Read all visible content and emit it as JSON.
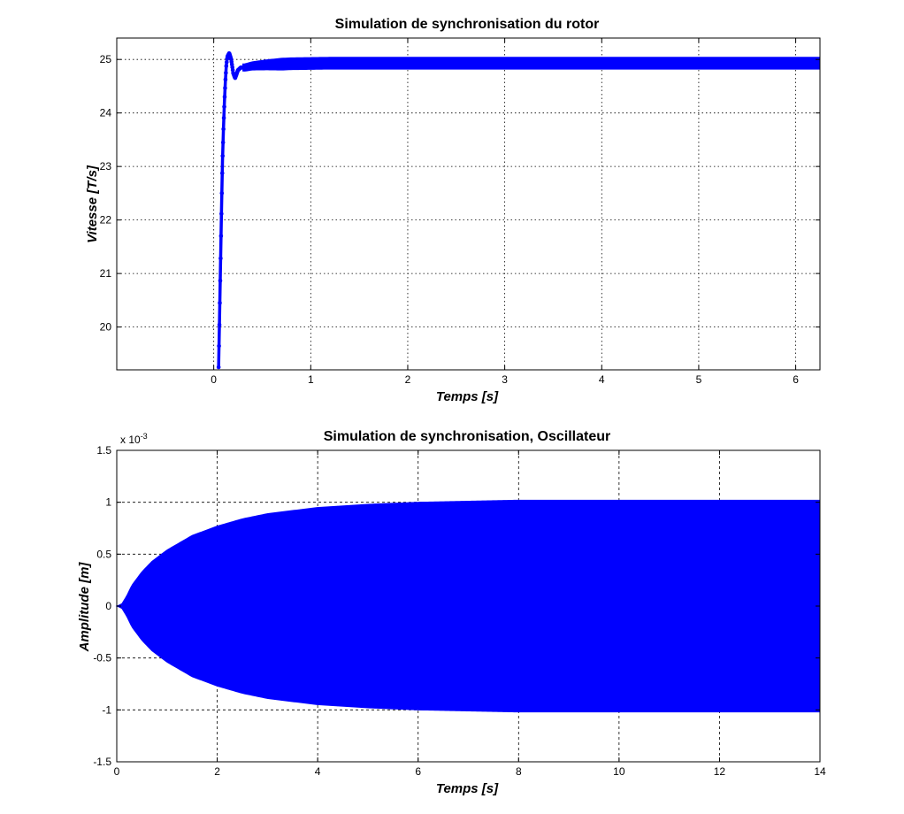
{
  "chart_data": [
    {
      "type": "line",
      "title": "Simulation de synchronisation du rotor",
      "xlabel": "Temps [s]",
      "ylabel": "Vitesse [T/s]",
      "xlim": [
        -1,
        6.25
      ],
      "ylim": [
        19.2,
        25.4
      ],
      "xticks": [
        0,
        1,
        2,
        3,
        4,
        5,
        6
      ],
      "yticks": [
        20,
        21,
        22,
        23,
        24,
        25
      ],
      "grid": "dotted",
      "color": "#0000ff",
      "marker": "dot",
      "series": [
        {
          "x": [
            0.05,
            0.06,
            0.07,
            0.08,
            0.09,
            0.1,
            0.11,
            0.12,
            0.13,
            0.14,
            0.16,
            0.18,
            0.2,
            0.22,
            0.25,
            0.28,
            0.32,
            0.4,
            0.55,
            0.8,
            1.2,
            2.0,
            3.0,
            4.0,
            5.0,
            6.25
          ],
          "y": [
            19.25,
            20.2,
            21.2,
            22.2,
            23.1,
            23.7,
            24.2,
            24.6,
            24.9,
            25.05,
            25.12,
            25.0,
            24.75,
            24.65,
            24.8,
            24.85,
            24.85,
            24.88,
            24.9,
            24.92,
            24.93,
            24.93,
            24.93,
            24.93,
            24.93,
            24.93
          ],
          "oscillation_band": 0.22
        }
      ]
    },
    {
      "type": "area",
      "title": "Simulation de synchronisation, Oscillateur",
      "xlabel": "Temps [s]",
      "ylabel": "Amplitude [m]",
      "y_multiplier": "x 10",
      "y_multiplier_exp": "-3",
      "xlim": [
        0,
        14
      ],
      "ylim": [
        -1.5,
        1.5
      ],
      "xticks": [
        0,
        2,
        4,
        6,
        8,
        10,
        12,
        14
      ],
      "yticks": [
        -1.5,
        -1,
        -0.5,
        0,
        0.5,
        1,
        1.5
      ],
      "ytick_labels": [
        "-1.5",
        "-1",
        "-0.5",
        "0",
        "0.5",
        "1",
        "1.5"
      ],
      "grid": "dashed",
      "color": "#0000ff",
      "envelope": {
        "x": [
          0,
          0.1,
          0.2,
          0.3,
          0.5,
          0.7,
          1.0,
          1.5,
          2.0,
          2.5,
          3.0,
          3.5,
          4.0,
          5.0,
          6.0,
          7.0,
          8.0,
          10.0,
          12.0,
          14.0
        ],
        "y": [
          0,
          0.02,
          0.1,
          0.2,
          0.33,
          0.43,
          0.54,
          0.68,
          0.77,
          0.84,
          0.89,
          0.92,
          0.95,
          0.98,
          1.0,
          1.01,
          1.02,
          1.02,
          1.02,
          1.02
        ]
      }
    }
  ]
}
